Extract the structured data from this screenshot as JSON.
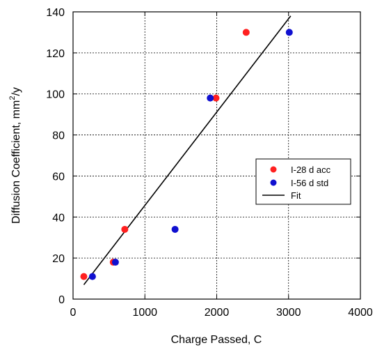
{
  "chart_data": {
    "type": "scatter",
    "title": "",
    "xlabel": "Charge Passed, C",
    "ylabel_main": "Diffusion Coefficient, mm",
    "ylabel_sup": "2",
    "ylabel_tail": "/y",
    "xlim": [
      0,
      4000
    ],
    "ylim": [
      0,
      140
    ],
    "xticks": [
      0,
      1000,
      2000,
      3000,
      4000
    ],
    "yticks": [
      0,
      20,
      40,
      60,
      80,
      100,
      120,
      140
    ],
    "grid": true,
    "legend_position": "right-middle",
    "series": [
      {
        "name": "I-28 d acc",
        "color": "#ff2020",
        "marker": "circle",
        "points": [
          {
            "x": 150,
            "y": 11
          },
          {
            "x": 560,
            "y": 18
          },
          {
            "x": 720,
            "y": 34
          },
          {
            "x": 1990,
            "y": 98
          },
          {
            "x": 2410,
            "y": 130
          }
        ]
      },
      {
        "name": "I-56 d std",
        "color": "#1010d0",
        "marker": "circle",
        "points": [
          {
            "x": 270,
            "y": 11
          },
          {
            "x": 590,
            "y": 18
          },
          {
            "x": 1420,
            "y": 34
          },
          {
            "x": 1910,
            "y": 98
          },
          {
            "x": 3010,
            "y": 130
          }
        ]
      }
    ],
    "fit": {
      "name": "Fit",
      "color": "#000000",
      "x": [
        150,
        3030
      ],
      "y": [
        7,
        138
      ]
    }
  }
}
